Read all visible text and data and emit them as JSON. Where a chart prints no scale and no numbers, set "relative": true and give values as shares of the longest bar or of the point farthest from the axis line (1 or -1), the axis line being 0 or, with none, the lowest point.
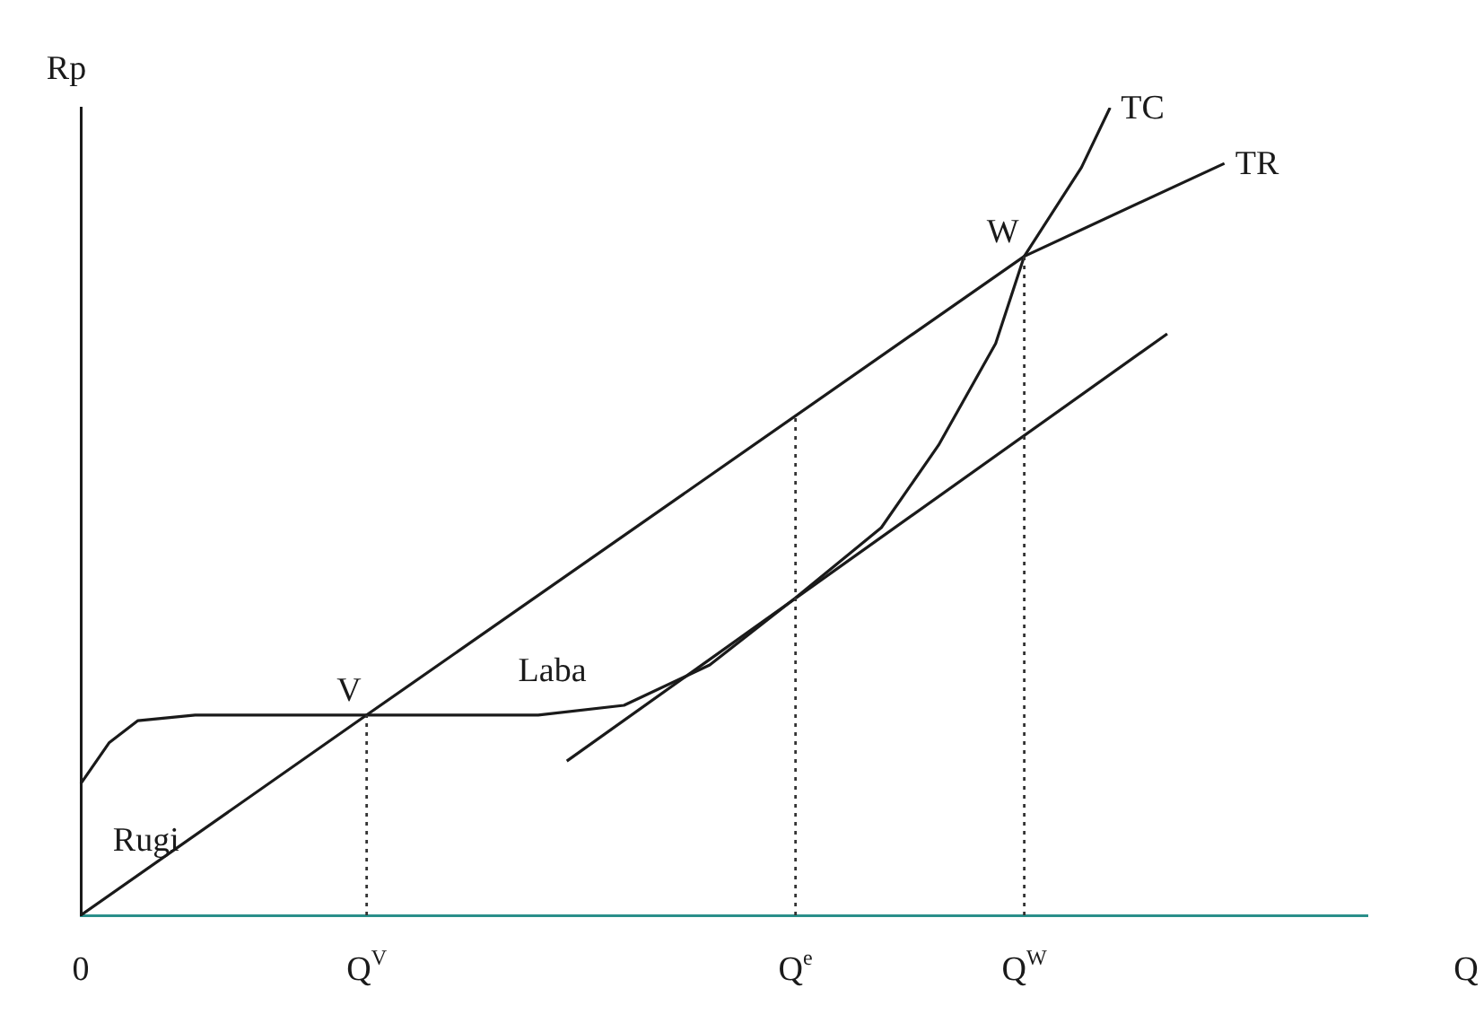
{
  "chart_data": {
    "type": "line",
    "relative": true,
    "xlabel": "Q",
    "ylabel": "Rp",
    "legend": false,
    "grid": "x",
    "categories": [
      "0",
      null,
      null,
      null,
      null,
      null,
      null,
      null,
      null,
      null,
      "Q$^{V}$",
      null,
      null,
      null,
      null,
      null,
      null,
      null,
      null,
      null,
      null,
      null,
      null,
      null,
      null,
      "Q$^{e}$",
      null,
      null,
      null,
      null,
      null,
      null,
      null,
      "Q$^{W}$",
      null,
      null,
      null,
      null,
      null,
      null,
      null,
      null,
      null,
      null,
      null,
      null
    ],
    "series": [
      {
        "name": "TR",
        "color": "#1a1a1a",
        "line_style": "solid",
        "values": [
          0,
          null,
          null,
          null,
          null,
          null,
          null,
          null,
          null,
          null,
          0.248,
          null,
          null,
          null,
          null,
          null,
          null,
          null,
          null,
          null,
          null,
          null,
          null,
          null,
          null,
          null,
          null,
          null,
          null,
          null,
          null,
          null,
          null,
          0.816,
          null,
          null,
          null,
          null,
          null,
          null,
          0.931,
          null,
          null,
          null,
          null,
          null
        ]
      },
      {
        "name": "TC",
        "color": "#1a1a1a",
        "line_style": "solid",
        "values": [
          0.163,
          0.214,
          0.241,
          null,
          0.248,
          null,
          null,
          null,
          null,
          null,
          0.248,
          null,
          null,
          null,
          null,
          null,
          0.248,
          null,
          null,
          0.26,
          null,
          null,
          0.31,
          null,
          null,
          0.393,
          null,
          null,
          0.48,
          null,
          0.582,
          null,
          0.708,
          0.816,
          null,
          0.926,
          1,
          null,
          null,
          null,
          null,
          null,
          null,
          null,
          null,
          null
        ]
      },
      {
        "color": "#1a1a1a",
        "line_style": "solid",
        "values": [
          null,
          null,
          null,
          null,
          null,
          null,
          null,
          null,
          null,
          null,
          null,
          null,
          null,
          null,
          null,
          null,
          null,
          0.191,
          null,
          null,
          null,
          null,
          null,
          null,
          null,
          null,
          null,
          null,
          null,
          null,
          null,
          null,
          null,
          null,
          null,
          null,
          null,
          null,
          0.72,
          null,
          null,
          null,
          null,
          null,
          null,
          null
        ]
      }
    ],
    "annotations": [
      {
        "text": "V",
        "x": "Q$^{V}$",
        "y": 0.248
      },
      {
        "text": "W",
        "x": "Q$^{W}$",
        "y": 0.816
      },
      "Laba",
      "Rugi"
    ]
  }
}
